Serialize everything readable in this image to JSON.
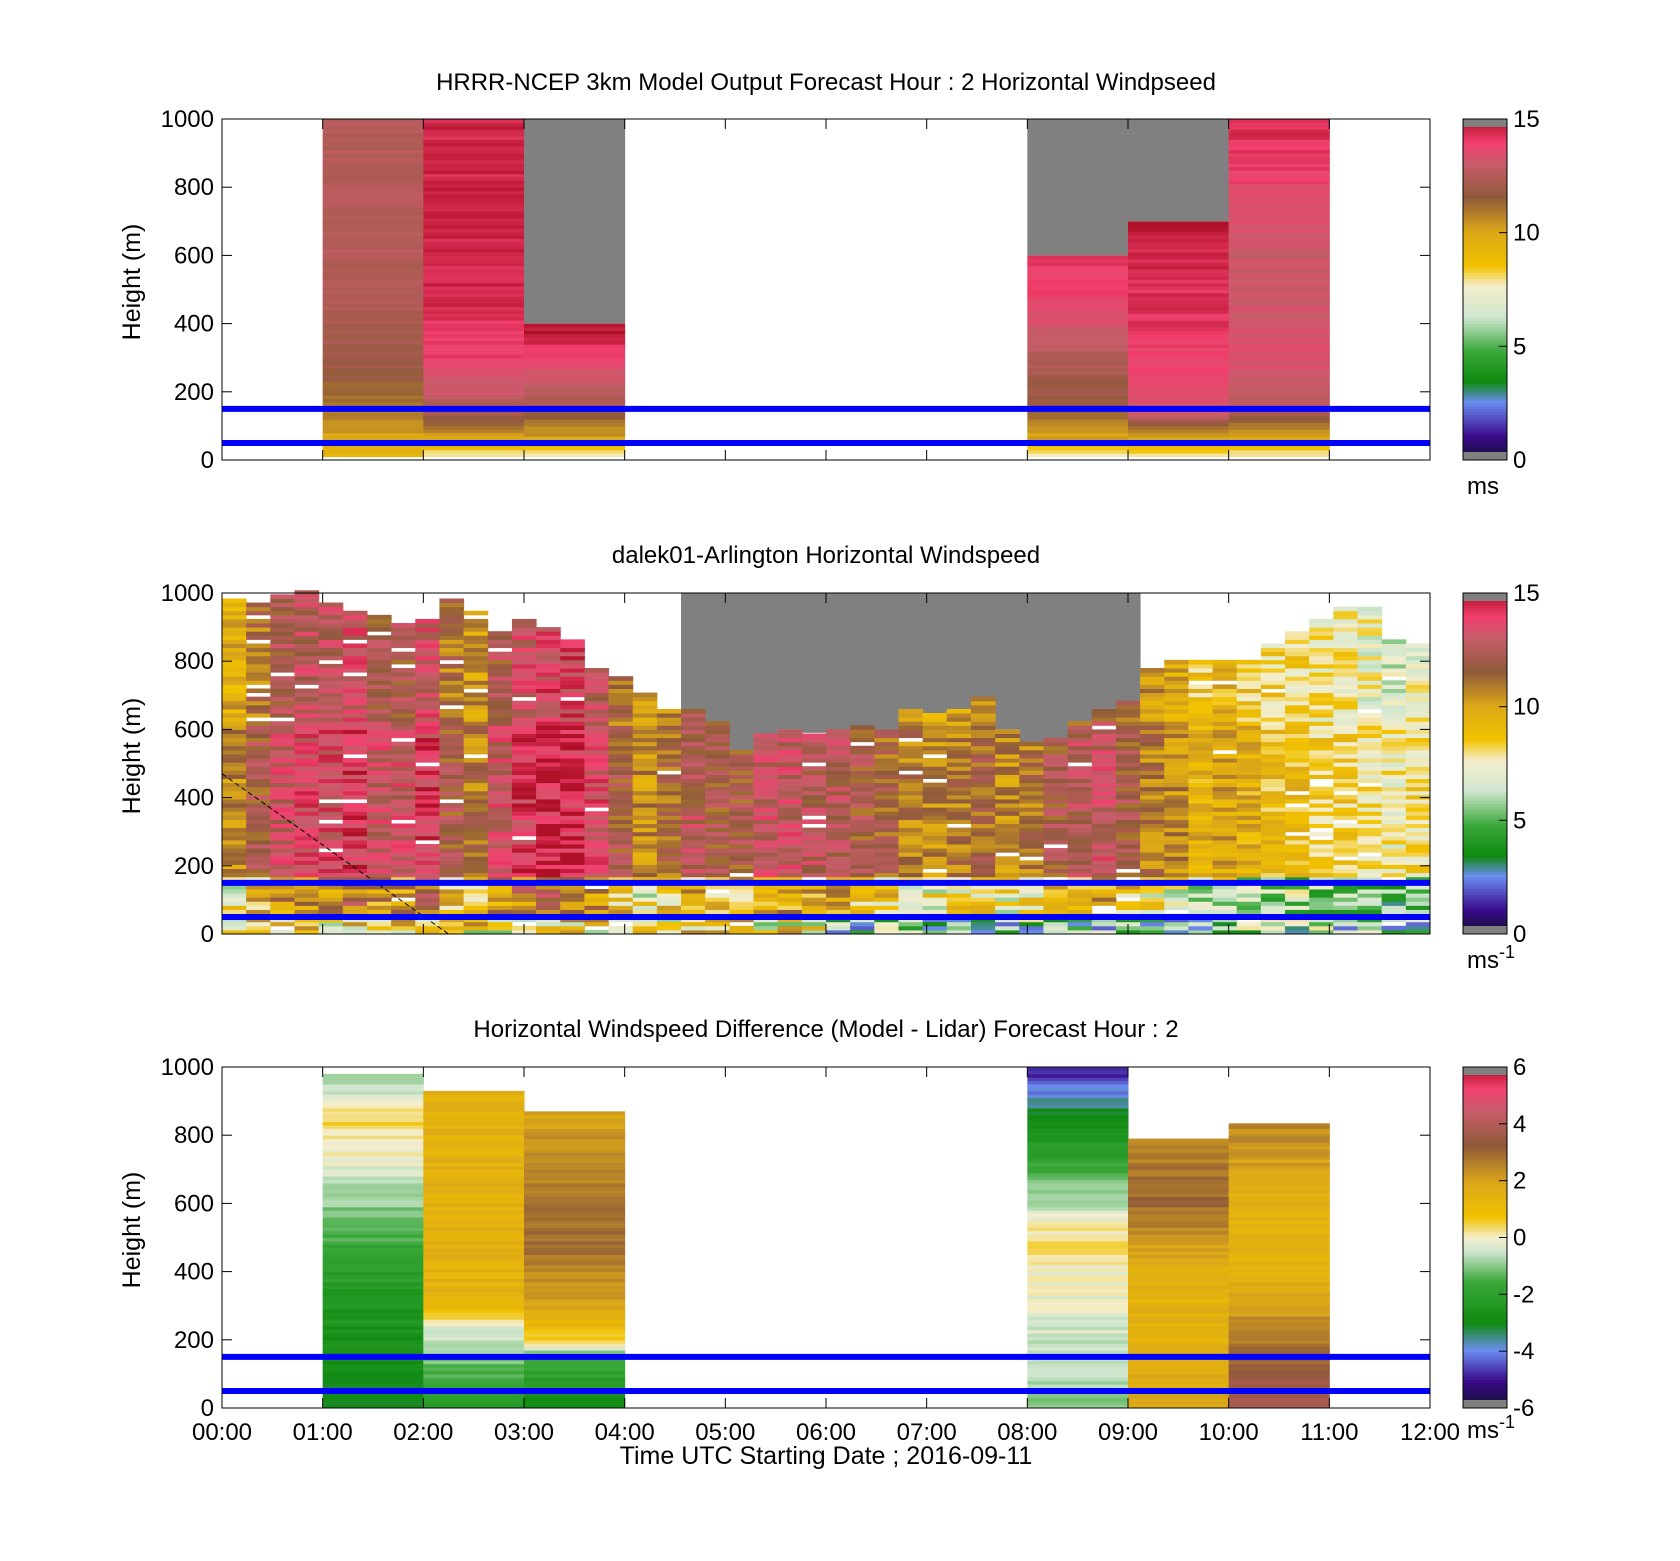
{
  "chart_data": [
    {
      "type": "heatmap",
      "title": "HRRR-NCEP 3km Model Output   Forecast Hour : 2 Horizontal Windpseed",
      "ylabel": "Height (m)",
      "xlabel": "",
      "xlim": [
        0,
        12
      ],
      "ylim": [
        0,
        1000
      ],
      "yticks": [
        0,
        200,
        400,
        600,
        800,
        1000
      ],
      "ytick_labels": [
        "0",
        "200",
        "400",
        "600",
        "800",
        "1000"
      ],
      "xticks": [
        0,
        1,
        2,
        3,
        4,
        5,
        6,
        7,
        8,
        9,
        10,
        11,
        12
      ],
      "colorbar": {
        "scheme": "speed",
        "ticks": [
          0,
          5,
          10,
          15
        ],
        "tick_labels": [
          "0",
          "5",
          "10",
          "15"
        ],
        "range": [
          0,
          15
        ],
        "unit": "ms"
      },
      "reference_lines_m": [
        50,
        150
      ],
      "reference_line_color": "#0000ff",
      "series": [
        {
          "hour": 1,
          "top": 1000,
          "profile": [
            [
              0,
              8.5
            ],
            [
              20,
              9.5
            ],
            [
              60,
              10
            ],
            [
              150,
              11
            ],
            [
              300,
              12
            ],
            [
              500,
              12.5
            ],
            [
              1000,
              12.5
            ]
          ],
          "gray_above": null
        },
        {
          "hour": 2,
          "top": 1000,
          "profile": [
            [
              0,
              7.5
            ],
            [
              20,
              8
            ],
            [
              60,
              10
            ],
            [
              150,
              12.5
            ],
            [
              300,
              14
            ],
            [
              500,
              14.5
            ],
            [
              1000,
              14.5
            ]
          ],
          "gray_above": null
        },
        {
          "hour": 3,
          "top": 400,
          "profile": [
            [
              0,
              6.5
            ],
            [
              20,
              8
            ],
            [
              60,
              10
            ],
            [
              150,
              12
            ],
            [
              300,
              14
            ],
            [
              400,
              15
            ]
          ],
          "gray_above": 400
        },
        {
          "hour": 8,
          "top": 600,
          "profile": [
            [
              0,
              7.5
            ],
            [
              20,
              8
            ],
            [
              60,
              10
            ],
            [
              150,
              11.5
            ],
            [
              300,
              12.5
            ],
            [
              500,
              14
            ],
            [
              600,
              14
            ]
          ],
          "gray_above": 600
        },
        {
          "hour": 9,
          "top": 700,
          "profile": [
            [
              0,
              7.5
            ],
            [
              20,
              8
            ],
            [
              60,
              10
            ],
            [
              150,
              13.5
            ],
            [
              300,
              14
            ],
            [
              600,
              14.5
            ],
            [
              700,
              15
            ]
          ],
          "gray_above": 700
        },
        {
          "hour": 10,
          "top": 1000,
          "profile": [
            [
              0,
              6.5
            ],
            [
              20,
              8
            ],
            [
              60,
              10
            ],
            [
              150,
              12.5
            ],
            [
              300,
              13.5
            ],
            [
              600,
              13
            ],
            [
              1000,
              14.5
            ]
          ],
          "gray_above": null
        }
      ]
    },
    {
      "type": "heatmap",
      "title": "dalek01-Arlington  Horizontal Windspeed",
      "ylabel": "Height (m)",
      "xlabel": "",
      "xlim": [
        0,
        12
      ],
      "ylim": [
        0,
        1000
      ],
      "yticks": [
        0,
        200,
        400,
        600,
        800,
        1000
      ],
      "ytick_labels": [
        "0",
        "200",
        "400",
        "600",
        "800",
        "1000"
      ],
      "xticks": [
        0,
        1,
        2,
        3,
        4,
        5,
        6,
        7,
        8,
        9,
        10,
        11,
        12
      ],
      "colorbar": {
        "scheme": "speed",
        "ticks": [
          0,
          5,
          10,
          15
        ],
        "tick_labels": [
          "0",
          "5",
          "10",
          "15"
        ],
        "range": [
          0,
          15
        ],
        "unit": "ms",
        "unit_sup": "-1"
      },
      "reference_lines_m": [
        50,
        150
      ],
      "reference_line_color": "#0000ff",
      "column_tops_m": [
        980,
        970,
        990,
        1000,
        970,
        940,
        930,
        910,
        920,
        980,
        940,
        880,
        920,
        900,
        860,
        780,
        750,
        700,
        660,
        650,
        620,
        530,
        580,
        600,
        590,
        590,
        610,
        590,
        650,
        640,
        650,
        690,
        600,
        560,
        570,
        620,
        660,
        680,
        780,
        800,
        800,
        800,
        800,
        850,
        880,
        920,
        950,
        960,
        860,
        850
      ],
      "column_speeds_ms": [
        10.5,
        12,
        13,
        13.5,
        13.5,
        14,
        13,
        13,
        14,
        12,
        11,
        13,
        14,
        14.5,
        14.5,
        13.5,
        12,
        10.5,
        11.5,
        12.5,
        12,
        12,
        13,
        13,
        12.5,
        12.5,
        12,
        11.5,
        11,
        10.5,
        11,
        11.5,
        10.5,
        11,
        12,
        12.5,
        13,
        12,
        11,
        10.5,
        9.5,
        10,
        9.5,
        9,
        9,
        8.5,
        8.5,
        8,
        7.5,
        8
      ]
    },
    {
      "type": "heatmap",
      "title": "Horizontal Windspeed Difference (Model - Lidar) Forecast Hour : 2",
      "ylabel": "Height (m)",
      "xlabel": "Time UTC  Starting Date ; 2016-09-11",
      "xlim": [
        0,
        12
      ],
      "ylim": [
        0,
        1000
      ],
      "yticks": [
        0,
        200,
        400,
        600,
        800,
        1000
      ],
      "ytick_labels": [
        "0",
        "200",
        "400",
        "600",
        "800",
        "1000"
      ],
      "xticks": [
        0,
        1,
        2,
        3,
        4,
        5,
        6,
        7,
        8,
        9,
        10,
        11,
        12
      ],
      "xtick_labels": [
        "00:00",
        "01:00",
        "02:00",
        "03:00",
        "04:00",
        "05:00",
        "06:00",
        "07:00",
        "08:00",
        "09:00",
        "10:00",
        "11:00",
        "12:00"
      ],
      "colorbar": {
        "scheme": "diff",
        "ticks": [
          -6,
          -4,
          -2,
          0,
          2,
          4,
          6
        ],
        "tick_labels": [
          "-6",
          "-4",
          "-2",
          "0",
          "2",
          "4",
          "6"
        ],
        "range": [
          -6,
          6
        ],
        "unit": "ms",
        "unit_sup": "-1"
      },
      "reference_lines_m": [
        50,
        150
      ],
      "reference_line_color": "#0000ff",
      "series": [
        {
          "hour": 1,
          "top": 980,
          "profile": [
            [
              0,
              -3
            ],
            [
              150,
              -2.8
            ],
            [
              300,
              -2.5
            ],
            [
              500,
              -1.5
            ],
            [
              700,
              -0.3
            ],
            [
              850,
              0.5
            ],
            [
              980,
              -1
            ]
          ]
        },
        {
          "hour": 2,
          "top": 930,
          "profile": [
            [
              0,
              -2.5
            ],
            [
              150,
              -1
            ],
            [
              250,
              -0.2
            ],
            [
              300,
              1.5
            ],
            [
              600,
              1.5
            ],
            [
              930,
              1.5
            ]
          ]
        },
        {
          "hour": 3,
          "top": 870,
          "profile": [
            [
              0,
              -3
            ],
            [
              150,
              -1.5
            ],
            [
              200,
              0.5
            ],
            [
              300,
              2
            ],
            [
              500,
              3
            ],
            [
              870,
              2
            ]
          ]
        },
        {
          "hour": 8,
          "top": 1000,
          "profile": [
            [
              0,
              -1
            ],
            [
              200,
              -0.5
            ],
            [
              500,
              0.3
            ],
            [
              700,
              -1.5
            ],
            [
              850,
              -3
            ],
            [
              1000,
              -5
            ]
          ]
        },
        {
          "hour": 9,
          "top": 790,
          "profile": [
            [
              0,
              2
            ],
            [
              200,
              1.5
            ],
            [
              400,
              1.5
            ],
            [
              600,
              3
            ],
            [
              790,
              2.5
            ]
          ]
        },
        {
          "hour": 10,
          "top": 835,
          "profile": [
            [
              0,
              4
            ],
            [
              150,
              3
            ],
            [
              400,
              1.5
            ],
            [
              600,
              1.5
            ],
            [
              835,
              2.5
            ]
          ]
        }
      ]
    }
  ]
}
